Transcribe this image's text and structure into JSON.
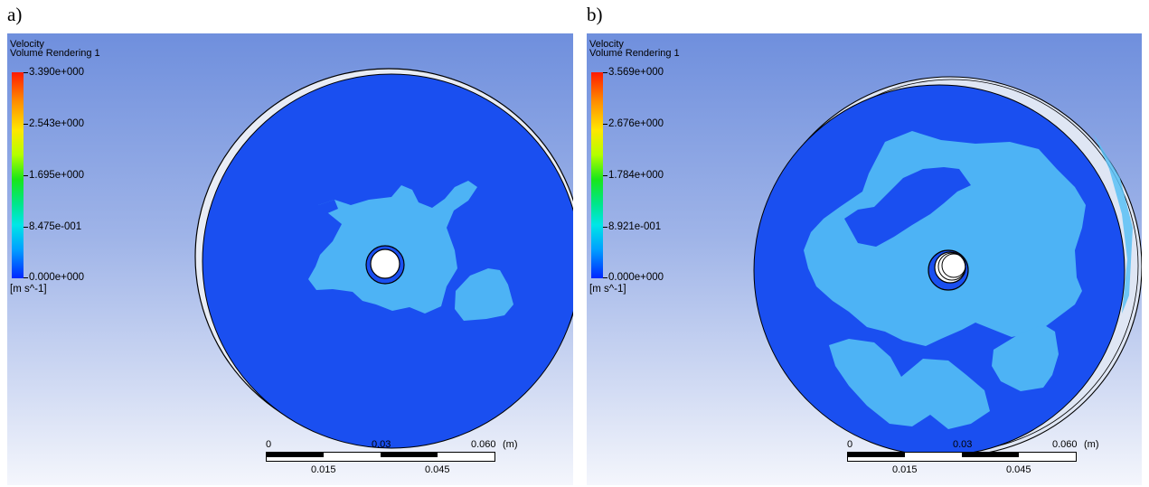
{
  "panels": [
    {
      "label": "a)",
      "legend": {
        "title": "Velocity",
        "subtitle": "Volume Rendering 1",
        "ticks": [
          "3.390e+000",
          "2.543e+000",
          "1.695e+000",
          "8.475e-001",
          "0.000e+000"
        ],
        "unit": "[m s^-1]"
      },
      "scale": {
        "top_labels": [
          "0",
          "0.03",
          "0.060",
          "(m)"
        ],
        "bottom_labels": [
          "0.015",
          "0.045"
        ]
      }
    },
    {
      "label": "b)",
      "legend": {
        "title": "Velocity",
        "subtitle": "Volume Rendering 1",
        "ticks": [
          "3.569e+000",
          "2.676e+000",
          "1.784e+000",
          "8.921e-001",
          "0.000e+000"
        ],
        "unit": "[m s^-1]"
      },
      "scale": {
        "top_labels": [
          "0",
          "0.03",
          "0.060",
          "(m)"
        ],
        "bottom_labels": [
          "0.015",
          "0.045"
        ]
      }
    }
  ],
  "colors": {
    "background_top": "#6f8fdd",
    "background_bottom": "#f4f6fc",
    "disk_low_velocity": "#1a4ff0",
    "disk_mid_velocity": "#4db3f5"
  }
}
